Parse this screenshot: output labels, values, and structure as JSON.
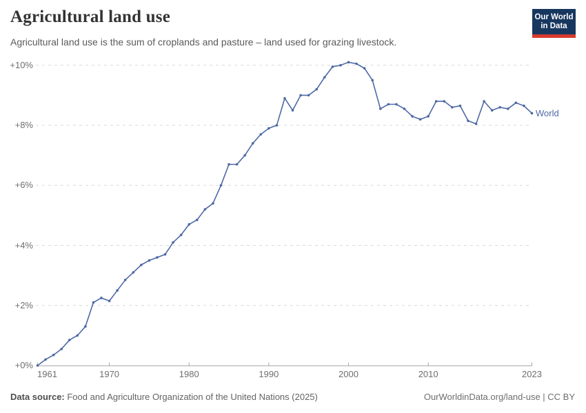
{
  "header": {
    "title": "Agricultural land use",
    "subtitle": "Agricultural land use is the sum of croplands and pasture – land used for grazing livestock.",
    "logo": {
      "line1": "Our World",
      "line2": "in Data"
    }
  },
  "footer": {
    "source_label": "Data source:",
    "source_text": " Food and Agriculture Organization of the United Nations (2025)",
    "link_text": "OurWorldinData.org/land-use | CC BY"
  },
  "colors": {
    "line": "#4d69a4",
    "grid": "#d9d9d9",
    "axis": "#a9a9a9",
    "tick_text": "#6e6e6e",
    "logo_navy": "#18375f",
    "logo_red": "#d93a2d"
  },
  "chart_data": {
    "type": "line",
    "title": "Agricultural land use",
    "subtitle": "Agricultural land use is the sum of croplands and pasture – land used for grazing livestock.",
    "unit": "% change since 1961",
    "grid": "dashed-horizontal",
    "legend": "end-of-line-label",
    "xlim": [
      1961,
      2023
    ],
    "ylim": [
      0,
      10
    ],
    "x_ticks": [
      1961,
      1970,
      1980,
      1990,
      2000,
      2010,
      2023
    ],
    "y_ticks": [
      {
        "value": 0,
        "label": "+0%"
      },
      {
        "value": 2,
        "label": "+2%"
      },
      {
        "value": 4,
        "label": "+4%"
      },
      {
        "value": 6,
        "label": "+6%"
      },
      {
        "value": 8,
        "label": "+8%"
      },
      {
        "value": 10,
        "label": "+10%"
      }
    ],
    "x": [
      1961,
      1962,
      1963,
      1964,
      1965,
      1966,
      1967,
      1968,
      1969,
      1970,
      1971,
      1972,
      1973,
      1974,
      1975,
      1976,
      1977,
      1978,
      1979,
      1980,
      1981,
      1982,
      1983,
      1984,
      1985,
      1986,
      1987,
      1988,
      1989,
      1990,
      1991,
      1992,
      1993,
      1994,
      1995,
      1996,
      1997,
      1998,
      1999,
      2000,
      2001,
      2002,
      2003,
      2004,
      2005,
      2006,
      2007,
      2008,
      2009,
      2010,
      2011,
      2012,
      2013,
      2014,
      2015,
      2016,
      2017,
      2018,
      2019,
      2020,
      2021,
      2022,
      2023
    ],
    "series": [
      {
        "name": "World",
        "values": [
          0,
          0.2,
          0.35,
          0.55,
          0.85,
          1.0,
          1.3,
          2.1,
          2.25,
          2.15,
          2.5,
          2.85,
          3.1,
          3.35,
          3.5,
          3.6,
          3.7,
          4.1,
          4.35,
          4.7,
          4.85,
          5.2,
          5.4,
          6.0,
          6.7,
          6.7,
          7.0,
          7.4,
          7.7,
          7.9,
          8.0,
          8.9,
          8.5,
          9.0,
          9.0,
          9.2,
          9.6,
          9.95,
          10.0,
          10.1,
          10.05,
          9.9,
          9.5,
          8.55,
          8.7,
          8.7,
          8.55,
          8.3,
          8.2,
          8.3,
          8.8,
          8.8,
          8.6,
          8.65,
          8.15,
          8.05,
          8.8,
          8.5,
          8.6,
          8.55,
          8.75,
          8.65,
          8.4
        ]
      }
    ]
  }
}
